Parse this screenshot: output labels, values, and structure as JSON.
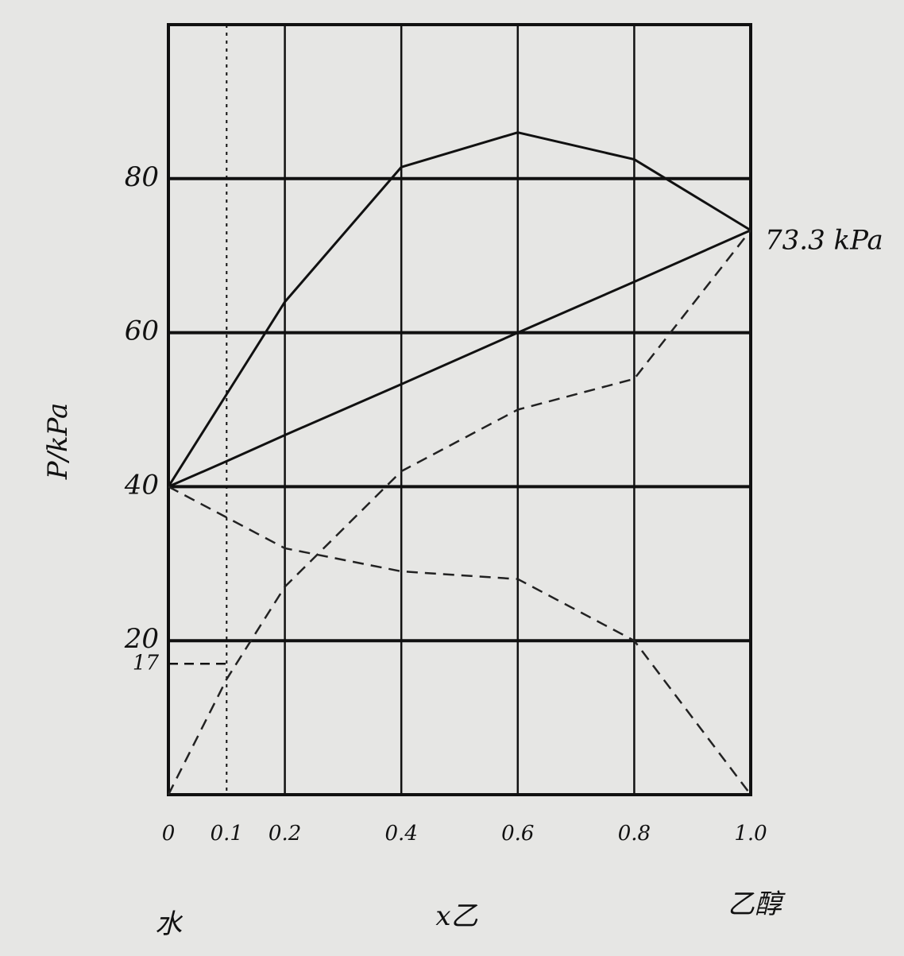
{
  "chart_data": {
    "type": "line",
    "y_label": "P/kPa",
    "x_label": "x乙",
    "left_label": "水",
    "right_label": "乙醇",
    "annotation": "73.3 kPa",
    "x": [
      0,
      0.1,
      0.2,
      0.4,
      0.6,
      0.8,
      1.0
    ],
    "series": [
      {
        "color": "#111111",
        "style": "solid",
        "values": [
          40,
          52,
          64,
          81.5,
          86,
          82.5,
          73.3
        ]
      },
      {
        "color": "#111111",
        "style": "solid",
        "values": [
          40,
          43.3,
          46.7,
          53.3,
          60,
          66.6,
          73.3
        ]
      },
      {
        "color": "#222222",
        "style": "dashed",
        "values": [
          40,
          36,
          32,
          29,
          28,
          20,
          0
        ]
      },
      {
        "color": "#222222",
        "style": "dashed",
        "values": [
          0,
          15,
          27,
          42,
          50,
          54,
          73.3
        ]
      }
    ],
    "xlim": [
      0,
      1.0
    ],
    "ylim": [
      0,
      100
    ],
    "xticks": [
      0,
      0.1,
      0.2,
      0.4,
      0.6,
      0.8,
      {
        "value": 1.0,
        "label": "1.0"
      }
    ],
    "yticks": [
      17,
      20,
      40,
      60,
      80
    ],
    "grid": true
  }
}
